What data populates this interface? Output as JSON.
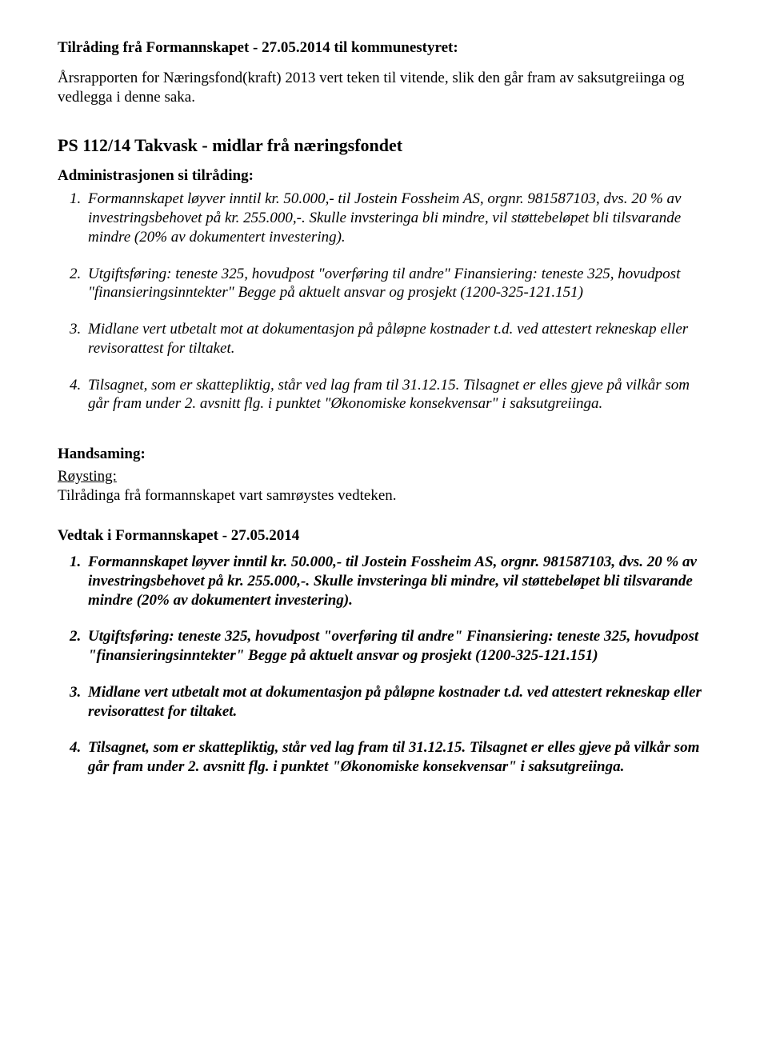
{
  "top": {
    "heading": "Tilråding frå Formannskapet - 27.05.2014 til kommunestyret:",
    "para": "Årsrapporten for Næringsfond(kraft) 2013 vert teken til vitende, slik den går fram av saksutgreiinga og vedlegga i denne saka."
  },
  "section": {
    "title": "PS 112/14 Takvask - midlar frå næringsfondet",
    "subheading": "Administrasjonen si tilråding:",
    "items": [
      "Formannskapet løyver inntil kr. 50.000,- til Jostein Fossheim AS, orgnr. 981587103, dvs. 20 %  av investringsbehovet på kr. 255.000,-. Skulle invsteringa bli mindre, vil støttebeløpet bli tilsvarande mindre (20% av dokumentert investering).",
      "Utgiftsføring: teneste 325, hovudpost \"overføring til andre\" Finansiering: teneste 325, hovudpost \"finansieringsinntekter\" Begge på aktuelt ansvar og prosjekt (1200-325-121.151)",
      " Midlane vert utbetalt mot at dokumentasjon på påløpne kostnader t.d. ved attestert rekneskap  eller revisorattest for tiltaket.",
      "Tilsagnet, som er skattepliktig, står ved lag fram til 31.12.15. Tilsagnet er elles gjeve på vilkår som går fram under 2. avsnitt flg. i punktet \"Økonomiske konsekvensar\" i saksutgreiinga."
    ]
  },
  "handsaming": {
    "label": "Handsaming:",
    "roysting_label": "Røysting:",
    "roysting_text": "Tilrådinga frå formannskapet vart samrøystes vedteken."
  },
  "vedtak": {
    "title": "Vedtak i Formannskapet - 27.05.2014",
    "items": [
      "Formannskapet løyver inntil kr. 50.000,- til Jostein Fossheim AS, orgnr. 981587103, dvs. 20 %  av investringsbehovet på kr. 255.000,-. Skulle invsteringa bli mindre, vil støttebeløpet bli tilsvarande mindre (20% av dokumentert investering).",
      "Utgiftsføring: teneste 325, hovudpost \"overføring til andre\" Finansiering: teneste 325, hovudpost \"finansieringsinntekter\" Begge på aktuelt ansvar og prosjekt (1200-325-121.151)",
      " Midlane vert utbetalt mot at dokumentasjon på påløpne kostnader t.d. ved attestert rekneskap  eller revisorattest for tiltaket.",
      "Tilsagnet, som er skattepliktig, står ved lag fram til 31.12.15. Tilsagnet er elles gjeve på vilkår som går fram under 2. avsnitt flg. i punktet \"Økonomiske konsekvensar\" i saksutgreiinga."
    ]
  }
}
